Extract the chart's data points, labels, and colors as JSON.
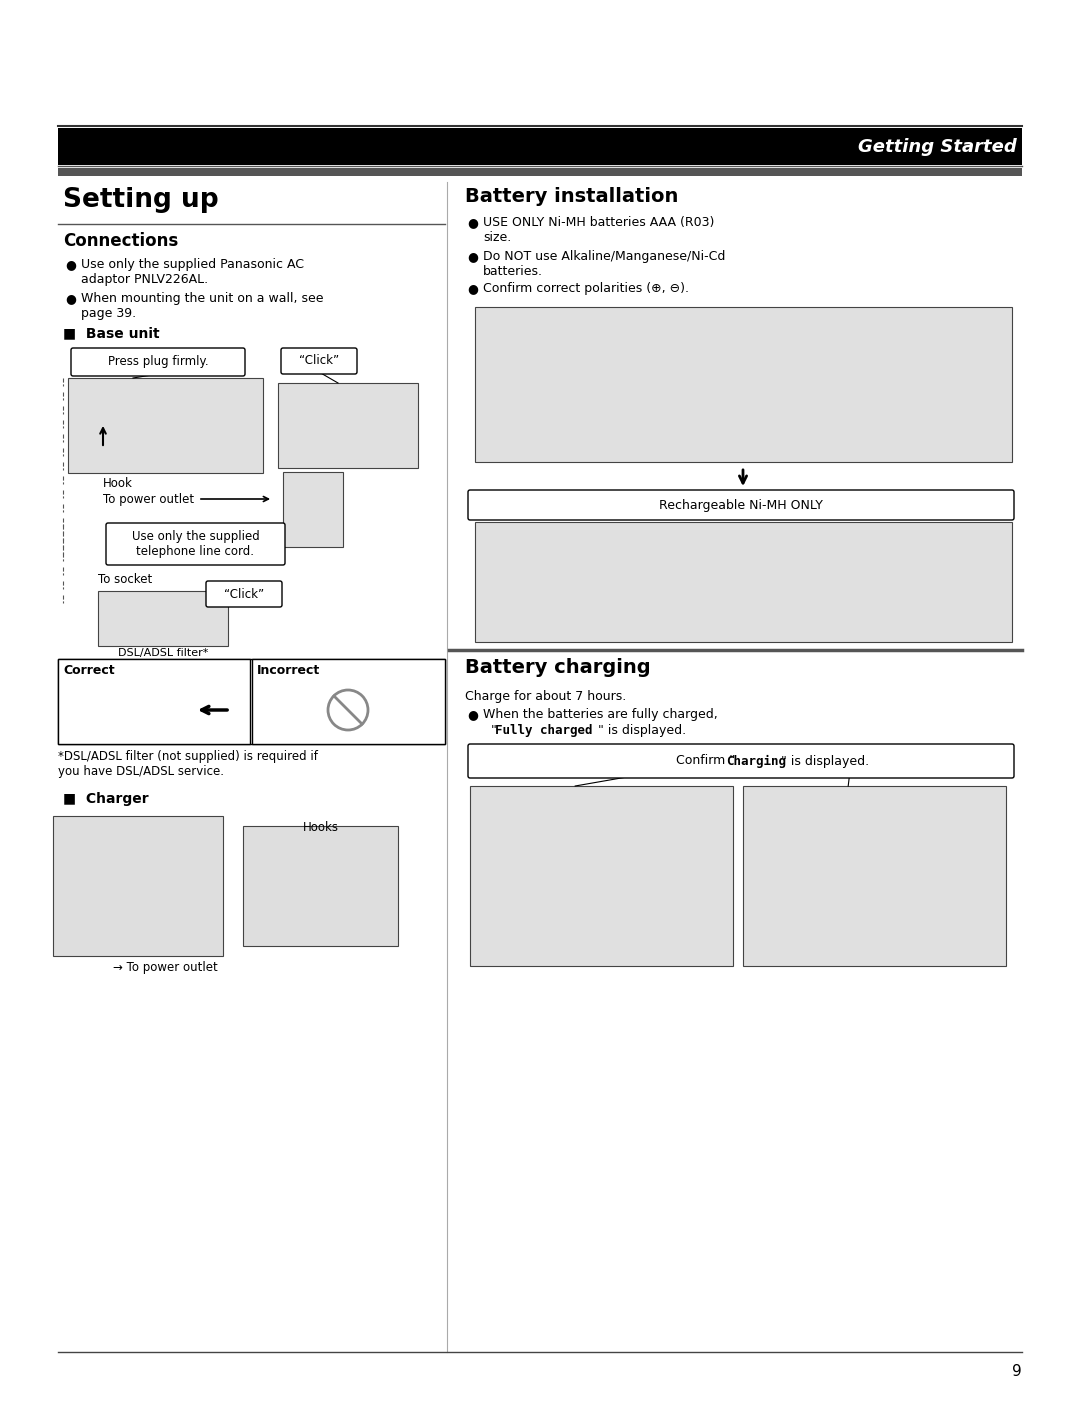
{
  "page_bg": "#ffffff",
  "header_bar_color": "#000000",
  "header_bar_text": "Getting Started",
  "header_bar_text_color": "#ffffff",
  "section_bar_color": "#444444",
  "left_title": "Setting up",
  "left_section1_title": "Connections",
  "left_bullet1": "Use only the supplied Panasonic AC\nadaptor PNLV226AL.",
  "left_bullet2": "When mounting the unit on a wall, see\npage 39.",
  "left_subsection1": "Base unit",
  "left_callout1": "Press plug firmly.",
  "left_callout2": "“Click”",
  "left_label_hook": "Hook",
  "left_label_power": "To power outlet",
  "left_label2": "Use only the supplied\ntelephone line cord.",
  "left_label3": "To socket",
  "left_callout3": "“Click”",
  "left_label4": "DSL/ADSL filter*",
  "correct_label": "Correct",
  "incorrect_label": "Incorrect",
  "footnote1": "*DSL/ADSL filter (not supplied) is required if\nyou have DSL/ADSL service.",
  "left_subsection2": "Charger",
  "charger_label1": "Hooks",
  "charger_label2": "→ To power outlet",
  "right_title": "Battery installation",
  "right_bullet1": "USE ONLY Ni-MH batteries AAA (R03)\nsize.",
  "right_bullet2": "Do NOT use Alkaline/Manganese/Ni-Cd\nbatteries.",
  "right_bullet3": "Confirm correct polarities (⊕, ⊖).",
  "rechargeable_label": "Rechargeable Ni-MH ONLY",
  "right_title2": "Battery charging",
  "battery_charging_text": "Charge for about 7 hours.",
  "battery_charging_bullet1": "When the batteries are fully charged,",
  "battery_charging_bullet2": "“Fully charged” is displayed.",
  "charging_callout": "Confirm “Charging” is displayed.",
  "page_number": "9",
  "note_fully": "\"Fully charged\"",
  "note_charging": "\"Charging\""
}
